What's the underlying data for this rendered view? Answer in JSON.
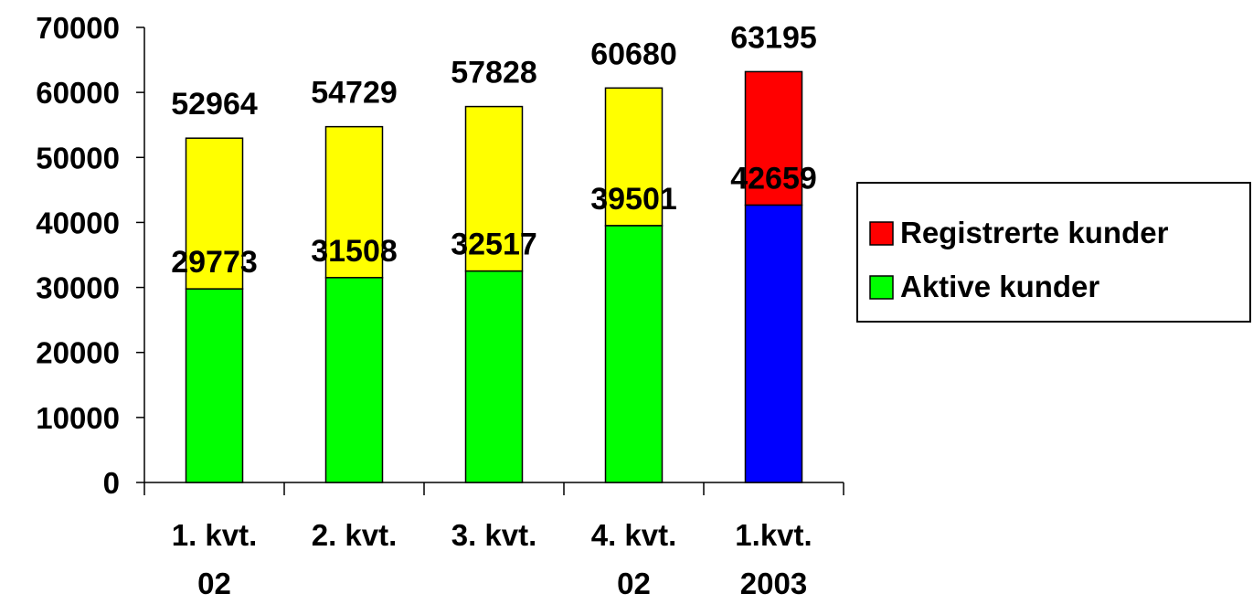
{
  "chart_data": {
    "type": "bar",
    "stacked": true,
    "categories": [
      [
        "1. kvt.",
        "02"
      ],
      [
        "2. kvt.",
        ""
      ],
      [
        "3. kvt.",
        ""
      ],
      [
        "4. kvt.",
        "02"
      ],
      [
        "1.kvt.",
        "2003"
      ]
    ],
    "ylim": [
      0,
      70000
    ],
    "yticks": [
      "0",
      "10000",
      "20000",
      "30000",
      "40000",
      "50000",
      "60000",
      "70000"
    ],
    "series": [
      {
        "name": "Aktive kunder",
        "values": [
          29773,
          31508,
          32517,
          39501,
          42659
        ],
        "colors": [
          "#00ff00",
          "#00ff00",
          "#00ff00",
          "#00ff00",
          "#0000ff"
        ],
        "labels": [
          "29773",
          "31508",
          "32517",
          "39501",
          "42659"
        ]
      },
      {
        "name": "Registrerte kunder",
        "totals": [
          52964,
          54729,
          57828,
          60680,
          63195
        ],
        "colors": [
          "#ffff00",
          "#ffff00",
          "#ffff00",
          "#ffff00",
          "#ff0000"
        ],
        "labels": [
          "52964",
          "54729",
          "57828",
          "60680",
          "63195"
        ]
      }
    ],
    "legend": {
      "position": "right",
      "items": [
        {
          "label": "Registrerte kunder",
          "color": "#ff0000"
        },
        {
          "label": "Aktive kunder",
          "color": "#00ff00"
        }
      ]
    },
    "grid": false
  }
}
